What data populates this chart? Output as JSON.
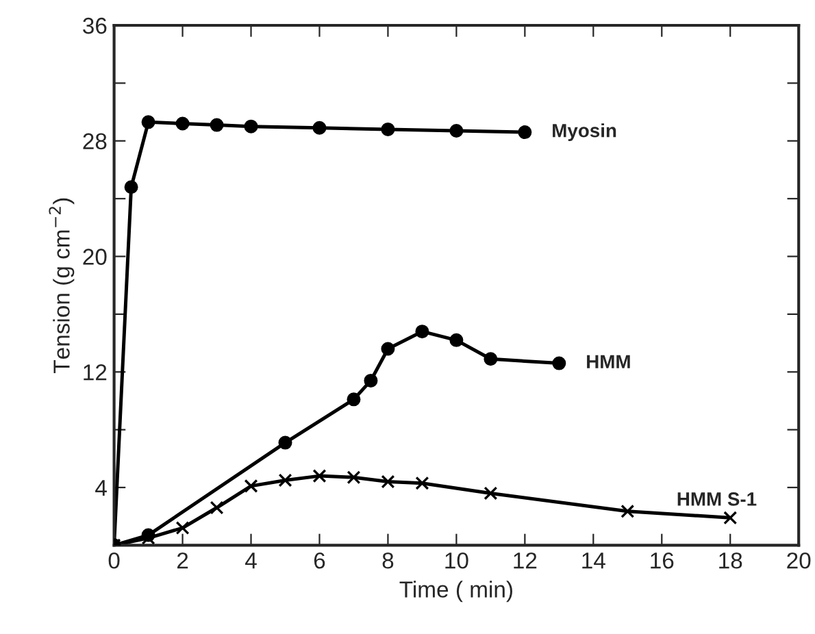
{
  "chart_data": {
    "type": "line",
    "xlabel": "Time ( min)",
    "ylabel": "Tension (g cm$^{−2}$)",
    "xlim": [
      0,
      20
    ],
    "xticks": [
      0,
      2,
      4,
      6,
      8,
      10,
      12,
      14,
      16,
      18,
      20
    ],
    "ylim": [
      0,
      36
    ],
    "yticks": [
      {
        "value": 4,
        "label": "4"
      },
      {
        "value": 8,
        "label": null
      },
      {
        "value": 12,
        "label": "12"
      },
      {
        "value": 16,
        "label": null
      },
      {
        "value": 20,
        "label": "20"
      },
      {
        "value": 24,
        "label": null
      },
      {
        "value": 28,
        "label": "28"
      },
      {
        "value": 32,
        "label": null
      },
      {
        "value": 36,
        "label": "36"
      }
    ],
    "grid": false,
    "legend": false,
    "line_style": "solid",
    "series": [
      {
        "name": "Myosin",
        "color": "#000000",
        "marker": "circle",
        "x": [
          0,
          0.5,
          1,
          2,
          3,
          4,
          6,
          8,
          10,
          12
        ],
        "values": [
          0,
          24.8,
          29.3,
          29.2,
          29.1,
          29.0,
          28.9,
          28.8,
          28.7,
          28.6
        ]
      },
      {
        "name": "HMM",
        "color": "#000000",
        "marker": "circle",
        "x": [
          0,
          1,
          5,
          7,
          7.5,
          8,
          9,
          10,
          11,
          13
        ],
        "values": [
          0,
          0.7,
          7.1,
          10.1,
          11.4,
          13.6,
          14.8,
          14.2,
          12.9,
          12.6
        ]
      },
      {
        "name": "HMM S-1",
        "color": "#000000",
        "marker": "cross",
        "x": [
          0,
          1,
          2,
          3,
          4,
          5,
          6,
          7,
          8,
          9,
          11,
          15,
          18
        ],
        "values": [
          0,
          0.5,
          1.2,
          2.6,
          4.1,
          4.5,
          4.8,
          4.7,
          4.4,
          4.3,
          3.6,
          2.35,
          1.9
        ]
      }
    ]
  }
}
